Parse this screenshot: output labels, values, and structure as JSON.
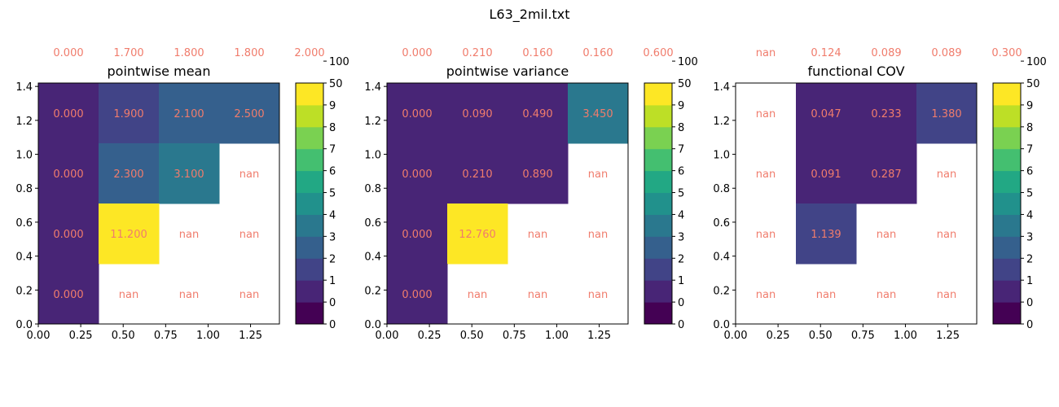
{
  "figure_title": "L63_2mil.txt",
  "chart_data": [
    {
      "type": "heatmap",
      "title": "pointwise mean",
      "xlim": [
        0,
        1.42
      ],
      "ylim": [
        0,
        1.42
      ],
      "xticks": [
        "0.00",
        "0.25",
        "0.50",
        "0.75",
        "1.00",
        "1.25"
      ],
      "yticks": [
        "0.0",
        "0.2",
        "0.4",
        "0.6",
        "0.8",
        "1.0",
        "1.2",
        "1.4"
      ],
      "top_labels": [
        "0.000",
        "1.700",
        "1.800",
        "1.800",
        "2.000"
      ],
      "rows": [
        [
          "0.000",
          "1.900",
          "2.100",
          "2.500"
        ],
        [
          "0.000",
          "2.300",
          "3.100",
          "nan"
        ],
        [
          "0.000",
          "11.200",
          "nan",
          "nan"
        ],
        [
          "0.000",
          "nan",
          "nan",
          "nan"
        ]
      ]
    },
    {
      "type": "heatmap",
      "title": "pointwise variance",
      "xlim": [
        0,
        1.42
      ],
      "ylim": [
        0,
        1.42
      ],
      "xticks": [
        "0.00",
        "0.25",
        "0.50",
        "0.75",
        "1.00",
        "1.25"
      ],
      "yticks": [
        "0.0",
        "0.2",
        "0.4",
        "0.6",
        "0.8",
        "1.0",
        "1.2",
        "1.4"
      ],
      "top_labels": [
        "0.000",
        "0.210",
        "0.160",
        "0.160",
        "0.600"
      ],
      "rows": [
        [
          "0.000",
          "0.090",
          "0.490",
          "3.450"
        ],
        [
          "0.000",
          "0.210",
          "0.890",
          "nan"
        ],
        [
          "0.000",
          "12.760",
          "nan",
          "nan"
        ],
        [
          "0.000",
          "nan",
          "nan",
          "nan"
        ]
      ]
    },
    {
      "type": "heatmap",
      "title": "functional COV",
      "xlim": [
        0,
        1.42
      ],
      "ylim": [
        0,
        1.42
      ],
      "xticks": [
        "0.00",
        "0.25",
        "0.50",
        "0.75",
        "1.00",
        "1.25"
      ],
      "yticks": [
        "0.0",
        "0.2",
        "0.4",
        "0.6",
        "0.8",
        "1.0",
        "1.2",
        "1.4"
      ],
      "top_labels": [
        "nan",
        "0.124",
        "0.089",
        "0.089",
        "0.300"
      ],
      "rows": [
        [
          "nan",
          "0.047",
          "0.233",
          "1.380"
        ],
        [
          "nan",
          "0.091",
          "0.287",
          "nan"
        ],
        [
          "nan",
          "1.139",
          "nan",
          "nan"
        ],
        [
          "nan",
          "nan",
          "nan",
          "nan"
        ]
      ]
    }
  ],
  "colorbar": {
    "levels": [
      "0",
      "0",
      "1",
      "2",
      "3",
      "4",
      "5",
      "6",
      "7",
      "8",
      "9",
      "50",
      "100"
    ],
    "bounds": [
      0,
      0,
      1,
      2,
      3,
      4,
      5,
      6,
      7,
      8,
      9,
      50,
      100
    ],
    "colors": [
      "#440154",
      "#482576",
      "#414487",
      "#35608d",
      "#2a788e",
      "#21918c",
      "#22a884",
      "#44bf70",
      "#7ad151",
      "#bddf26",
      "#fde725"
    ]
  },
  "label_color": "#f07c6c"
}
